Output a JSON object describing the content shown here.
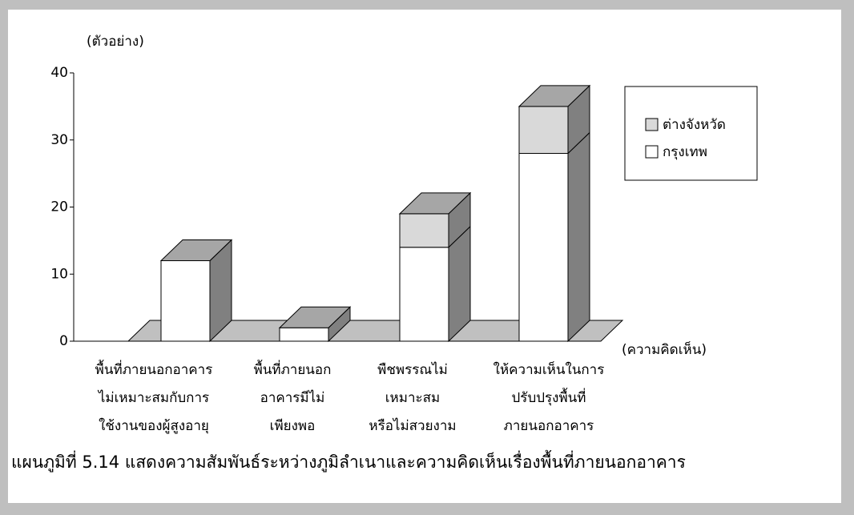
{
  "chart_data": {
    "type": "bar3d_stacked",
    "caption": "แผนภูมิที่ 5.14 แสดงความสัมพันธ์ระหว่างภูมิลำเนาและความคิดเห็นเรื่องพื้นที่ภายนอกอาคาร",
    "y_label": "(ตัวอย่าง)",
    "x_label": "(ความคิดเห็น)",
    "categories": [
      [
        "พื้นที่ภายนอกอาคาร",
        "ไม่เหมาะสมกับการ",
        "ใช้งานของผู้สูงอายุ"
      ],
      [
        "พื้นที่ภายนอก",
        "อาคารมีไม่",
        "เพียงพอ"
      ],
      [
        "พืชพรรณไม่",
        "เหมาะสม",
        "หรือไม่สวยงาม"
      ],
      [
        "ให้ความเห็นในการ",
        "ปรับปรุงพื้นที่",
        "ภายนอกอาคาร"
      ]
    ],
    "series": [
      {
        "name": "กรุงเทพ",
        "color": "#ffffff",
        "values": [
          12,
          2,
          14,
          28
        ]
      },
      {
        "name": "ต่างจังหวัด",
        "color": "#d9d9d9",
        "values": [
          0,
          0,
          5,
          7
        ]
      }
    ],
    "ylim": [
      0,
      40
    ],
    "yticks": [
      0,
      10,
      20,
      30,
      40
    ],
    "legend": "right"
  }
}
